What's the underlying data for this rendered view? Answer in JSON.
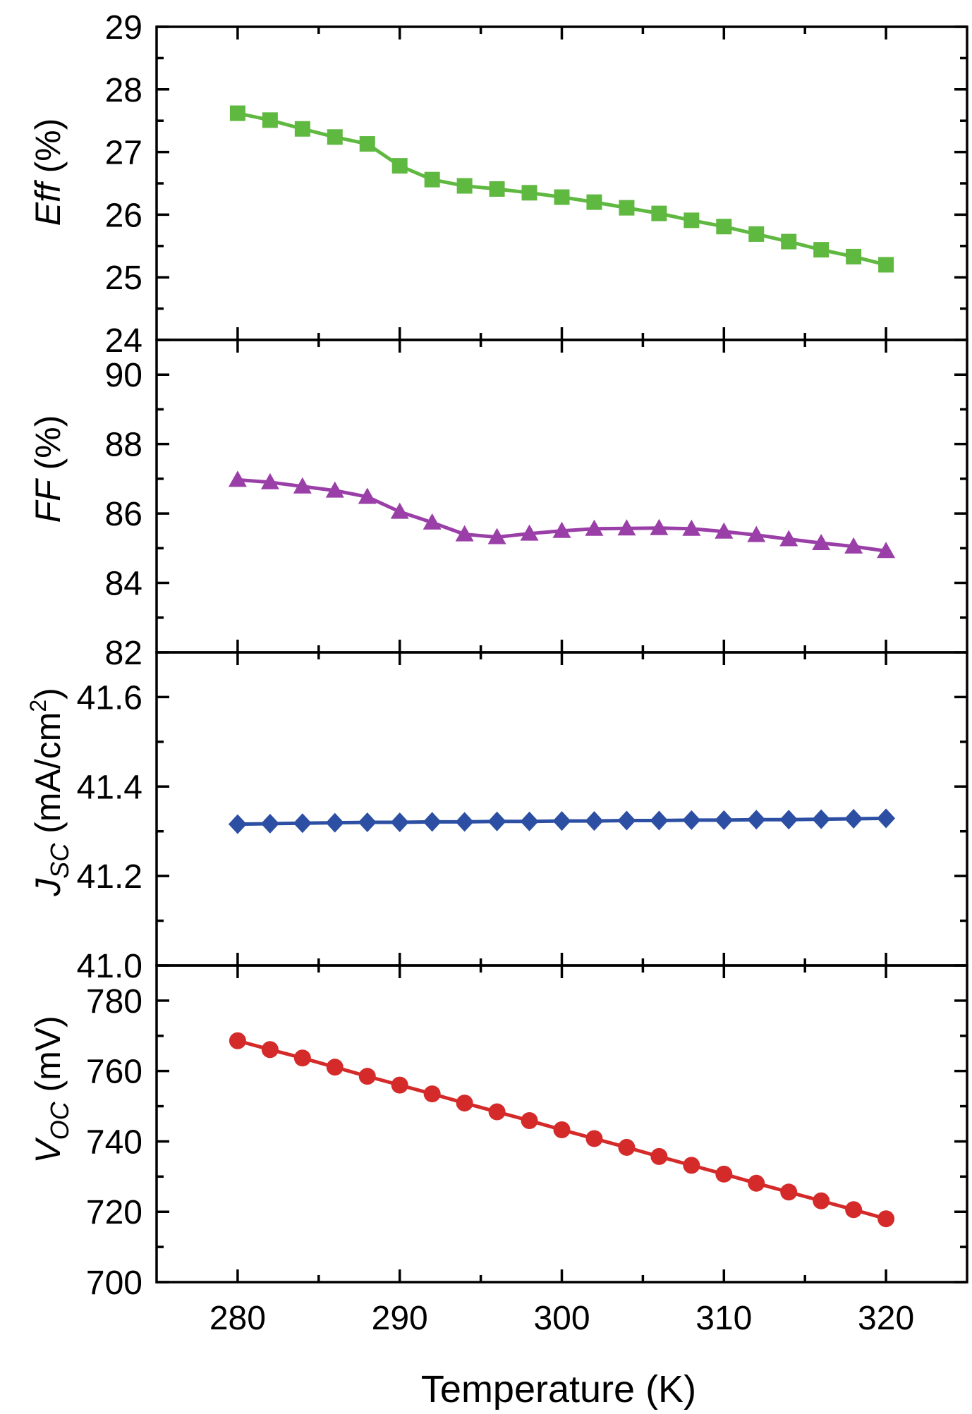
{
  "chart_data": [
    {
      "id": "eff",
      "type": "line",
      "ylabel": {
        "italic": "Eff",
        "rest": " (%)"
      },
      "ylim": [
        24,
        29
      ],
      "yticks": [
        24,
        25,
        26,
        27,
        28,
        29
      ],
      "yticklabels": [
        "24",
        "25",
        "26",
        "27",
        "28",
        "29"
      ],
      "marker": "square",
      "color": "#5fb840",
      "series": [
        {
          "name": "Eff",
          "x": [
            280,
            282,
            284,
            286,
            288,
            290,
            292,
            294,
            296,
            298,
            300,
            302,
            304,
            306,
            308,
            310,
            312,
            314,
            316,
            318,
            320
          ],
          "values": [
            27.62,
            27.51,
            27.37,
            27.24,
            27.13,
            26.78,
            26.56,
            26.46,
            26.41,
            26.35,
            26.28,
            26.2,
            26.11,
            26.02,
            25.91,
            25.81,
            25.69,
            25.57,
            25.44,
            25.33,
            25.2
          ]
        }
      ]
    },
    {
      "id": "ff",
      "type": "line",
      "ylabel": {
        "italic": "FF",
        "rest": " (%)"
      },
      "ylim": [
        82,
        91
      ],
      "yticks": [
        82,
        84,
        86,
        88,
        90
      ],
      "yticklabels": [
        "82",
        "84",
        "86",
        "88",
        "90"
      ],
      "marker": "triangle",
      "color": "#9b3fa8",
      "series": [
        {
          "name": "FF",
          "x": [
            280,
            282,
            284,
            286,
            288,
            290,
            292,
            294,
            296,
            298,
            300,
            302,
            304,
            306,
            308,
            310,
            312,
            314,
            316,
            318,
            320
          ],
          "values": [
            86.97,
            86.9,
            86.78,
            86.66,
            86.48,
            86.05,
            85.74,
            85.4,
            85.32,
            85.42,
            85.5,
            85.56,
            85.57,
            85.58,
            85.56,
            85.48,
            85.38,
            85.26,
            85.15,
            85.05,
            84.92
          ]
        }
      ]
    },
    {
      "id": "jsc",
      "type": "line",
      "ylabel": {
        "main": "J",
        "sub": "SC",
        "rest": " (mA/cm",
        "sup": "2",
        "close": ")"
      },
      "ylim": [
        41.0,
        41.7
      ],
      "yticks": [
        41.0,
        41.2,
        41.4,
        41.6
      ],
      "yticklabels": [
        "41.0",
        "41.2",
        "41.4",
        "41.6"
      ],
      "marker": "diamond",
      "color": "#2d4fa3",
      "series": [
        {
          "name": "Jsc",
          "x": [
            280,
            282,
            284,
            286,
            288,
            290,
            292,
            294,
            296,
            298,
            300,
            302,
            304,
            306,
            308,
            310,
            312,
            314,
            316,
            318,
            320
          ],
          "values": [
            41.316,
            41.317,
            41.318,
            41.319,
            41.32,
            41.32,
            41.321,
            41.321,
            41.322,
            41.322,
            41.323,
            41.323,
            41.324,
            41.324,
            41.325,
            41.325,
            41.326,
            41.326,
            41.327,
            41.328,
            41.329
          ]
        }
      ]
    },
    {
      "id": "voc",
      "type": "line",
      "ylabel": {
        "main": "V",
        "sub": "OC",
        "rest": " (mV)"
      },
      "ylim": [
        700,
        790
      ],
      "yticks": [
        700,
        720,
        740,
        760,
        780
      ],
      "yticklabels": [
        "700",
        "720",
        "740",
        "760",
        "780"
      ],
      "marker": "circle",
      "color": "#d42a2a",
      "series": [
        {
          "name": "Voc",
          "x": [
            280,
            282,
            284,
            286,
            288,
            290,
            292,
            294,
            296,
            298,
            300,
            302,
            304,
            306,
            308,
            310,
            312,
            314,
            316,
            318,
            320
          ],
          "values": [
            768.6,
            766.1,
            763.7,
            761.1,
            758.5,
            756.0,
            753.5,
            750.9,
            748.4,
            745.9,
            743.3,
            740.8,
            738.3,
            735.7,
            733.2,
            730.7,
            728.1,
            725.6,
            723.1,
            720.6,
            718.0
          ]
        }
      ]
    }
  ],
  "xaxis": {
    "label": "Temperature (K)",
    "xlim": [
      275,
      325
    ],
    "ticks": [
      280,
      290,
      300,
      310,
      320
    ],
    "ticklabels": [
      "280",
      "290",
      "300",
      "310",
      "320"
    ]
  }
}
